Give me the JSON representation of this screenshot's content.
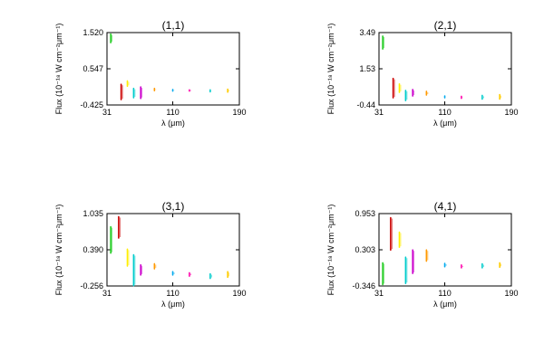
{
  "chart_data": [
    {
      "type": "scatter",
      "title": "(1,1)",
      "xlabel": "λ (μm)",
      "ylabel": "Flux (10⁻¹⁸ W cm⁻²μm⁻¹)",
      "xlim": [
        31,
        190
      ],
      "ylim": [
        -0.425,
        1.52
      ],
      "xticks": [
        "31",
        "110",
        "190"
      ],
      "yticks": [
        "-0.425",
        "0.547",
        "1.520"
      ],
      "grid": false,
      "series": [
        {
          "color": "#22cc22",
          "x": 35.5,
          "y": [
            1.25,
            1.48
          ]
        },
        {
          "color": "#cc0000",
          "x": 48.0,
          "y": [
            -0.28,
            0.13
          ]
        },
        {
          "color": "#ffee00",
          "x": 55.5,
          "y": [
            0.08,
            0.22
          ]
        },
        {
          "color": "#00cccc",
          "x": 63.0,
          "y": [
            -0.23,
            0.02
          ]
        },
        {
          "color": "#cc00cc",
          "x": 71.5,
          "y": [
            -0.25,
            0.06
          ]
        },
        {
          "color": "#ff9900",
          "x": 88.0,
          "y": [
            -0.04,
            0.02
          ]
        },
        {
          "color": "#00aaee",
          "x": 110.0,
          "y": [
            -0.05,
            -0.01
          ]
        },
        {
          "color": "#ff00aa",
          "x": 130.0,
          "y": [
            -0.05,
            -0.02
          ]
        },
        {
          "color": "#00cccc",
          "x": 155.0,
          "y": [
            -0.07,
            -0.02
          ]
        },
        {
          "color": "#ffcc00",
          "x": 176.0,
          "y": [
            -0.08,
            0.0
          ]
        }
      ]
    },
    {
      "type": "scatter",
      "title": "(2,1)",
      "xlabel": "λ (μm)",
      "ylabel": "Flux (10⁻¹⁸ W cm⁻²μm⁻¹)",
      "xlim": [
        31,
        190
      ],
      "ylim": [
        -0.44,
        3.49
      ],
      "xticks": [
        "31",
        "110",
        "190"
      ],
      "yticks": [
        "-0.44",
        "1.53",
        "3.49"
      ],
      "grid": false,
      "series": [
        {
          "color": "#22cc22",
          "x": 35.5,
          "y": [
            2.6,
            3.3
          ]
        },
        {
          "color": "#cc0000",
          "x": 48.0,
          "y": [
            -0.05,
            1.0
          ]
        },
        {
          "color": "#ffee00",
          "x": 55.5,
          "y": [
            0.25,
            0.7
          ]
        },
        {
          "color": "#00cccc",
          "x": 63.0,
          "y": [
            -0.2,
            0.35
          ]
        },
        {
          "color": "#cc00cc",
          "x": 71.5,
          "y": [
            0.05,
            0.4
          ]
        },
        {
          "color": "#ff9900",
          "x": 88.0,
          "y": [
            0.1,
            0.3
          ]
        },
        {
          "color": "#00aaee",
          "x": 110.0,
          "y": [
            -0.05,
            0.05
          ]
        },
        {
          "color": "#ff00aa",
          "x": 130.0,
          "y": [
            -0.08,
            0.03
          ]
        },
        {
          "color": "#00cccc",
          "x": 155.0,
          "y": [
            -0.12,
            0.08
          ]
        },
        {
          "color": "#ffcc00",
          "x": 176.0,
          "y": [
            -0.12,
            0.12
          ]
        }
      ]
    },
    {
      "type": "scatter",
      "title": "(3,1)",
      "xlabel": "λ (μm)",
      "ylabel": "Flux (10⁻¹⁸ W cm⁻²μm⁻¹)",
      "xlim": [
        31,
        190
      ],
      "ylim": [
        -0.256,
        1.035
      ],
      "xticks": [
        "31",
        "110",
        "190"
      ],
      "yticks": [
        "-0.256",
        "0.390",
        "1.035"
      ],
      "grid": false,
      "series": [
        {
          "color": "#22cc22",
          "x": 35.5,
          "y": [
            0.33,
            0.8
          ]
        },
        {
          "color": "#cc0000",
          "x": 45.0,
          "y": [
            0.6,
            0.98
          ]
        },
        {
          "color": "#ffee00",
          "x": 55.5,
          "y": [
            0.1,
            0.4
          ]
        },
        {
          "color": "#00cccc",
          "x": 63.0,
          "y": [
            -0.25,
            0.3
          ]
        },
        {
          "color": "#cc00cc",
          "x": 71.5,
          "y": [
            -0.06,
            0.12
          ]
        },
        {
          "color": "#ff9900",
          "x": 88.0,
          "y": [
            0.05,
            0.14
          ]
        },
        {
          "color": "#00aaee",
          "x": 110.0,
          "y": [
            -0.06,
            0.0
          ]
        },
        {
          "color": "#ff00aa",
          "x": 130.0,
          "y": [
            -0.08,
            -0.02
          ]
        },
        {
          "color": "#00cccc",
          "x": 155.0,
          "y": [
            -0.12,
            -0.04
          ]
        },
        {
          "color": "#ffcc00",
          "x": 176.0,
          "y": [
            -0.1,
            0.0
          ]
        }
      ]
    },
    {
      "type": "scatter",
      "title": "(4,1)",
      "xlabel": "λ (μm)",
      "ylabel": "Flux (10⁻¹⁸ W cm⁻²μm⁻¹)",
      "xlim": [
        31,
        190
      ],
      "ylim": [
        -0.346,
        0.953
      ],
      "xticks": [
        "31",
        "110",
        "190"
      ],
      "yticks": [
        "-0.346",
        "0.303",
        "0.953"
      ],
      "grid": false,
      "series": [
        {
          "color": "#22cc22",
          "x": 35.5,
          "y": [
            -0.32,
            0.07
          ]
        },
        {
          "color": "#cc0000",
          "x": 45.0,
          "y": [
            0.3,
            0.88
          ]
        },
        {
          "color": "#ffee00",
          "x": 55.5,
          "y": [
            0.35,
            0.62
          ]
        },
        {
          "color": "#00cccc",
          "x": 63.0,
          "y": [
            -0.3,
            0.17
          ]
        },
        {
          "color": "#cc00cc",
          "x": 71.5,
          "y": [
            -0.12,
            0.3
          ]
        },
        {
          "color": "#ff9900",
          "x": 88.0,
          "y": [
            0.1,
            0.3
          ]
        },
        {
          "color": "#00aaee",
          "x": 110.0,
          "y": [
            0.0,
            0.06
          ]
        },
        {
          "color": "#ff00aa",
          "x": 130.0,
          "y": [
            -0.02,
            0.03
          ]
        },
        {
          "color": "#00cccc",
          "x": 155.0,
          "y": [
            -0.02,
            0.05
          ]
        },
        {
          "color": "#ffcc00",
          "x": 176.0,
          "y": [
            -0.01,
            0.07
          ]
        }
      ]
    }
  ]
}
